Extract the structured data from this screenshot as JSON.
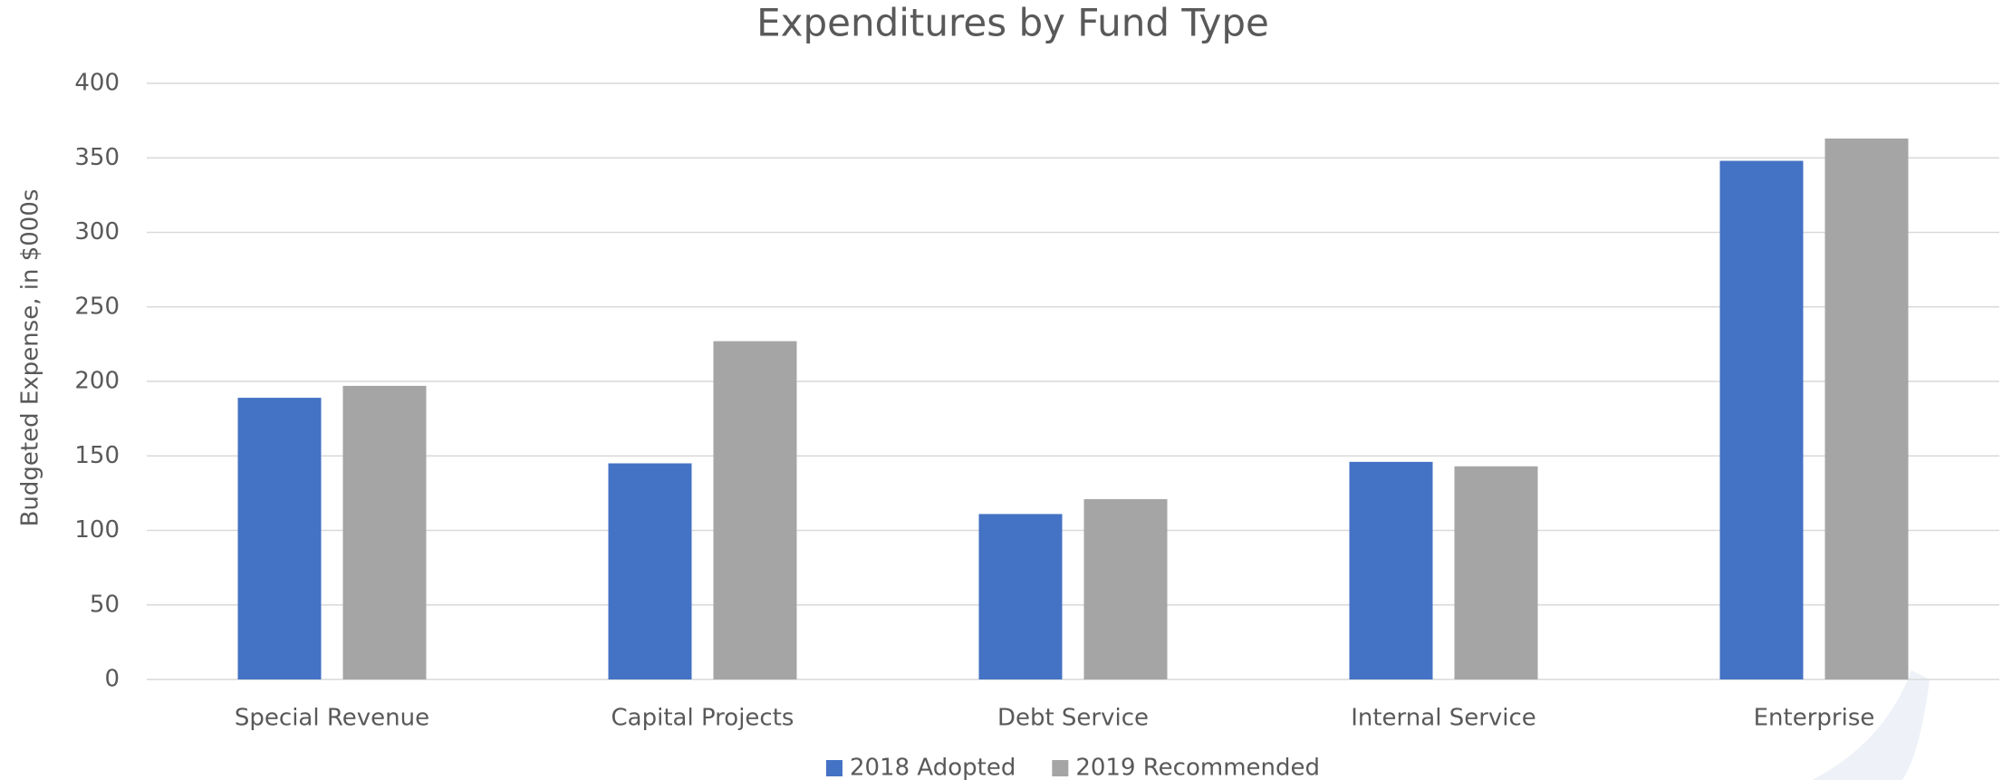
{
  "chart_data": {
    "type": "bar",
    "title": "Expenditures by Fund Type",
    "y_label": "Budgeted Expense, in $000s",
    "categories": [
      "Special Revenue",
      "Capital Projects",
      "Debt Service",
      "Internal Service",
      "Enterprise"
    ],
    "series": [
      {
        "name": "2018 Adopted",
        "color": "#4472c4",
        "values": [
          189,
          145,
          111,
          146,
          348
        ]
      },
      {
        "name": "2019 Recommended",
        "color": "#a5a5a5",
        "values": [
          197,
          227,
          121,
          143,
          363
        ]
      }
    ],
    "ylim": [
      0,
      400
    ],
    "yticks": [
      0,
      50,
      100,
      150,
      200,
      250,
      300,
      350,
      400
    ],
    "grid": true,
    "legend": "bottom"
  }
}
